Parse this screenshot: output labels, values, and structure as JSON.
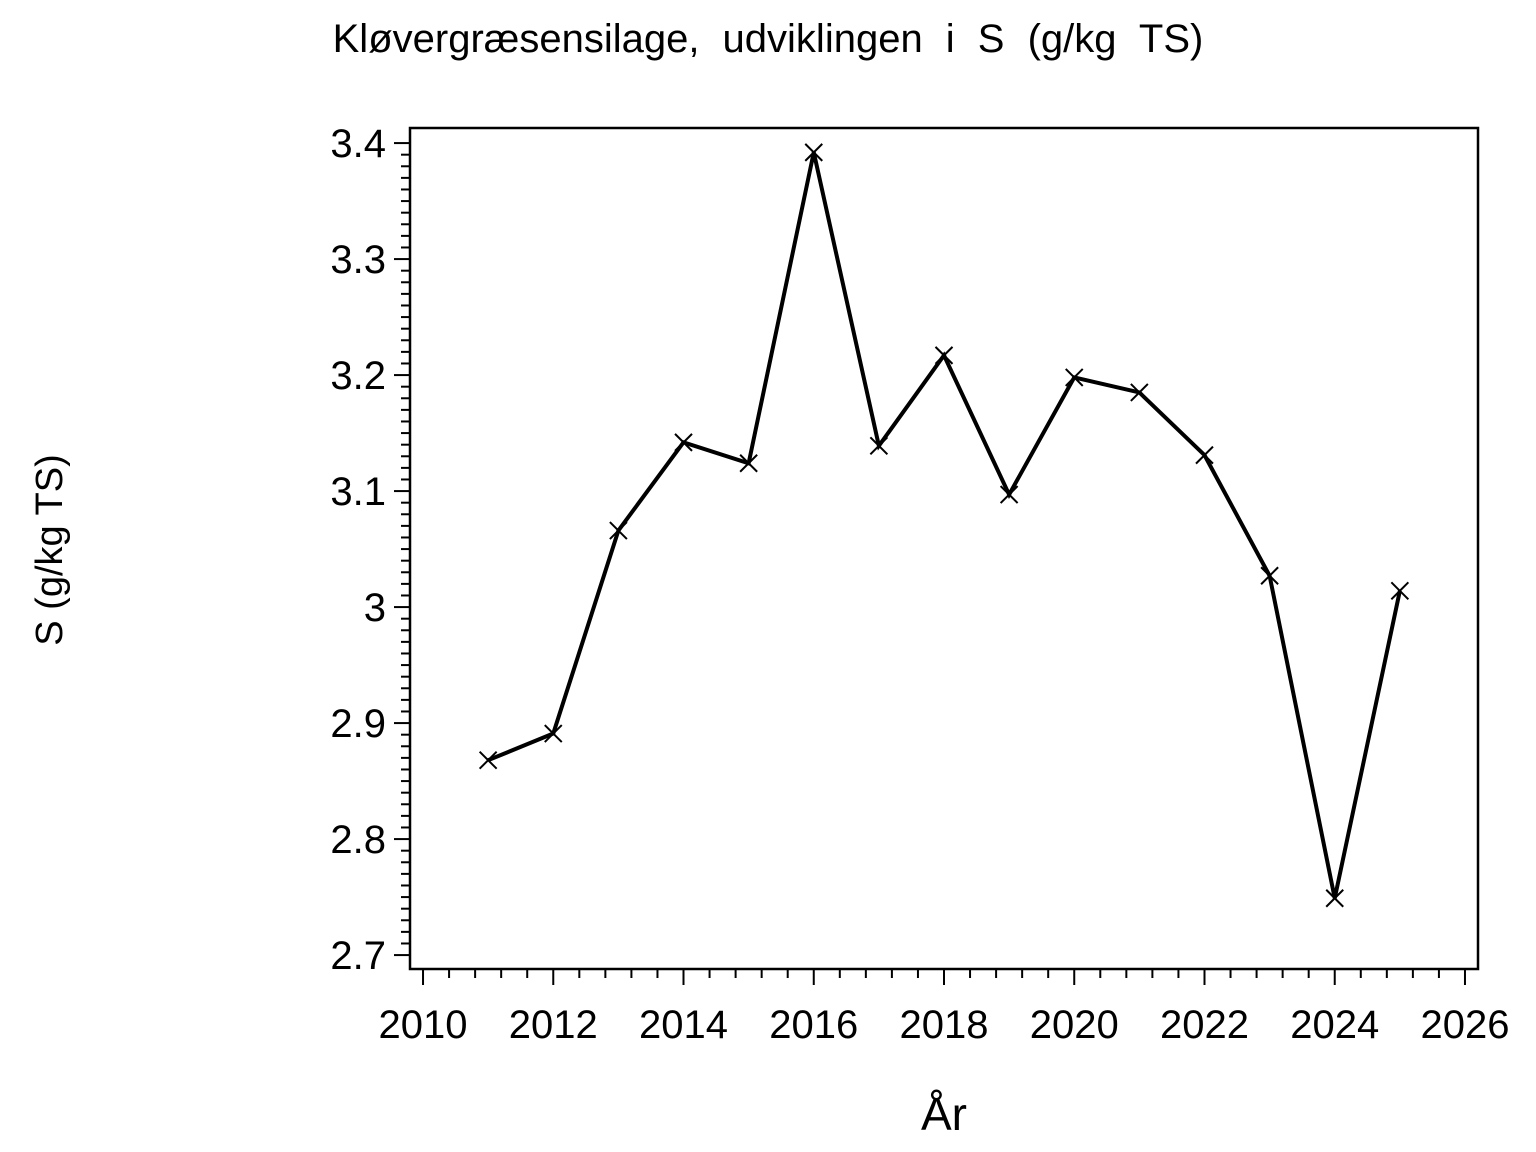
{
  "page": {
    "background": "#ffffff",
    "foreground": "#000000"
  },
  "chart_data": {
    "type": "line",
    "title": "Kløvergræsensilage, udviklingen i S (g/kg TS)",
    "xlabel": "År",
    "ylabel": "S (g/kg TS)",
    "series": [
      {
        "name": "S (g/kg TS)",
        "x": [
          2011,
          2012,
          2013,
          2014,
          2015,
          2016,
          2017,
          2018,
          2019,
          2020,
          2021,
          2022,
          2023,
          2024,
          2025
        ],
        "y": [
          2.868,
          2.891,
          3.066,
          3.142,
          3.124,
          3.392,
          3.139,
          3.217,
          3.097,
          3.198,
          3.185,
          3.131,
          3.027,
          2.749,
          3.014
        ]
      }
    ],
    "marker": "x",
    "line_color": "#000000",
    "axis_color": "#000000",
    "grid": false,
    "legend": false,
    "xlim": [
      2009.8,
      2026.2
    ],
    "ylim": [
      2.688,
      3.413
    ],
    "x_ticks": {
      "values": [
        2010,
        2012,
        2014,
        2016,
        2018,
        2020,
        2022,
        2024,
        2026
      ],
      "labels": [
        "2010",
        "2012",
        "2014",
        "2016",
        "2018",
        "2020",
        "2022",
        "2024",
        "2026"
      ],
      "major_step": 2,
      "minor_step": 0.4
    },
    "y_ticks": {
      "values": [
        2.7,
        2.8,
        2.9,
        3.0,
        3.1,
        3.2,
        3.3,
        3.4
      ],
      "labels": [
        "2.7",
        "2.8",
        "2.9",
        "3",
        "3.1",
        "3.2",
        "3.3",
        "3.4"
      ],
      "major_step": 0.1,
      "minor_step": 0.01
    }
  }
}
